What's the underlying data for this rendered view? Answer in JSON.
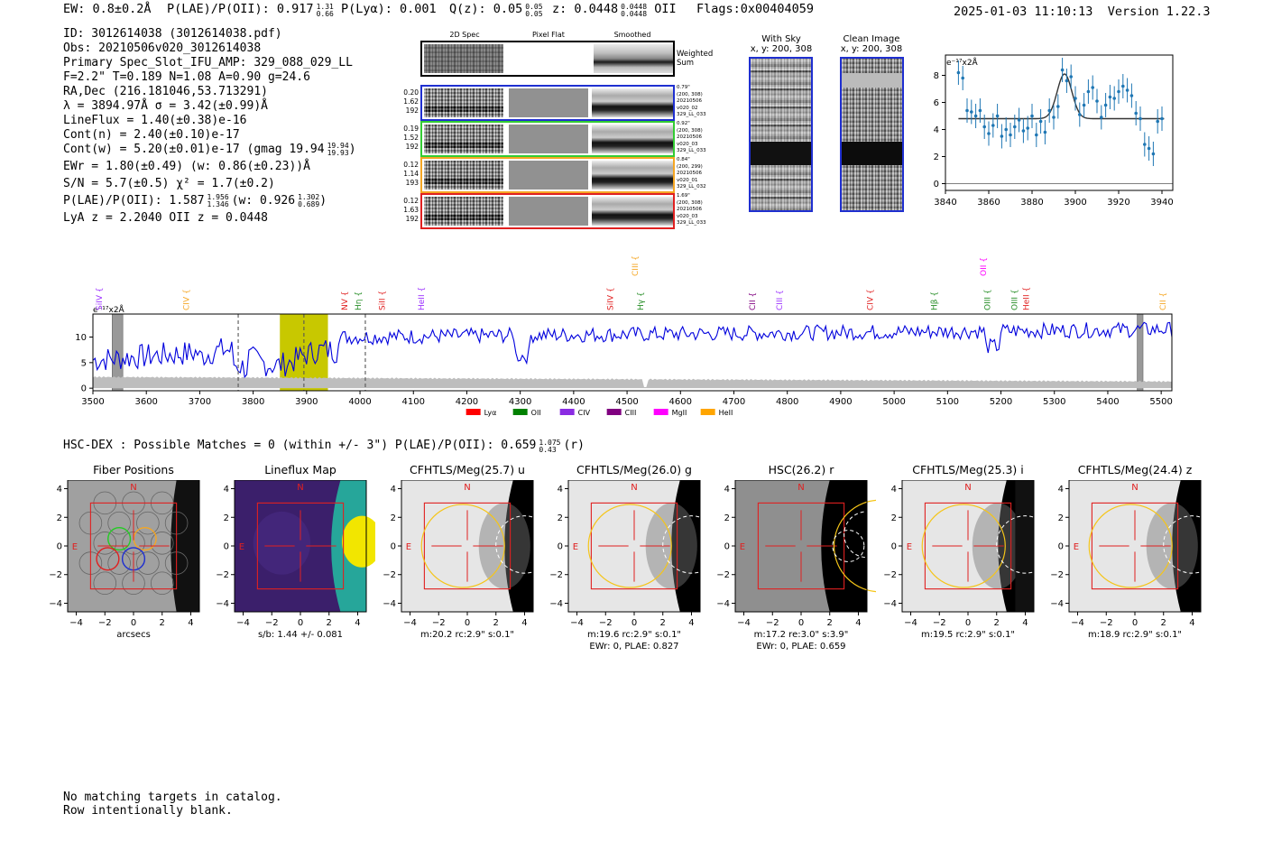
{
  "header": {
    "ew": "EW: 0.8±0.2Å",
    "plae": "P(LAE)/P(OII): 0.917",
    "plae_hi": "1.31",
    "plae_lo": "0.66",
    "plya": "P(Lyα): 0.001",
    "qz": "Q(z): 0.05",
    "qz_hi": "0.05",
    "qz_lo": "0.05",
    "z": "z: 0.0448",
    "z_hi": "0.0448",
    "z_lo": "0.0448",
    "z_line": "OII",
    "flags": "Flags:0x00404059",
    "datetime": "2025-01-03 11:10:13",
    "version": "Version 1.22.3"
  },
  "info": {
    "id": "ID: 3012614038 (3012614038.pdf)",
    "obs": "Obs: 20210506v020_3012614038",
    "primary": "Primary Spec_Slot_IFU_AMP: 329_088_029_LL",
    "fparams": "F=2.2\"  T=0.189  N=1.08  A=0.90  g=24.6",
    "radec": "RA,Dec (216.181046,53.713291)",
    "lambda": "λ = 3894.97Å   σ = 3.42(±0.99)Å",
    "lineflux": "LineFlux = 1.40(±0.38)e-16",
    "contn": "Cont(n) = 2.40(±0.10)e-17",
    "contw": "Cont(w) = 5.20(±0.01)e-17 (gmag 19.94",
    "contw_hi": "19.94",
    "contw_lo": "19.93",
    "ewr": "EWr = 1.80(±0.49) (w: 0.86(±0.23))Å",
    "sn": "S/N = 5.7(±0.5)  χ² = 1.7(±0.2)",
    "plae2": "P(LAE)/P(OII): 1.587",
    "plae2_hi": "1.956",
    "plae2_lo": "1.346",
    "plae2_w": "(w: 0.926",
    "plae2_w_hi": "1.302",
    "plae2_w_lo": "0.689",
    "lyaz": "LyA z = 2.2040   OII z = 0.0448"
  },
  "cutouts": {
    "col1": "2D Spec",
    "col2": "Pixel Flat",
    "col3": "Smoothed",
    "weighted": "Weighted",
    "sum": "Sum",
    "rows": [
      {
        "color": "#1f2fd0",
        "left": [
          "0.20",
          "1.62",
          "192"
        ],
        "right": [
          "0.79\"",
          "(200, 308)",
          "20210506",
          "v020_02",
          "329_LL_033"
        ]
      },
      {
        "color": "#33cc33",
        "left": [
          "0.19",
          "1.52",
          "192"
        ],
        "right": [
          "0.92\"",
          "(200, 308)",
          "20210506",
          "v020_03",
          "329_LL_033"
        ]
      },
      {
        "color": "#f5a623",
        "left": [
          "0.12",
          "1.14",
          "193"
        ],
        "right": [
          "0.84\"",
          "(200, 299)",
          "20210506",
          "v020_01",
          "329_LL_032"
        ]
      },
      {
        "color": "#e02020",
        "left": [
          "0.12",
          "1.63",
          "192"
        ],
        "right": [
          "1.69\"",
          "(200, 308)",
          "20210506",
          "v020_03",
          "329_LL_033"
        ]
      }
    ],
    "with_sky": "With Sky",
    "with_sky_xy": "x, y: 200, 308",
    "clean": "Clean Image",
    "clean_xy": "x, y: 200, 308"
  },
  "fit_chart": {
    "ylabel": "e⁻¹⁷x2Å",
    "chart_data": {
      "type": "scatter",
      "xlim": [
        3840,
        3945
      ],
      "ylim": [
        -0.5,
        9.5
      ],
      "xticks": [
        3840,
        3860,
        3880,
        3900,
        3920,
        3940
      ],
      "yticks": [
        0,
        2,
        4,
        6,
        8
      ],
      "x": [
        3846,
        3848,
        3850,
        3852,
        3854,
        3856,
        3858,
        3860,
        3862,
        3864,
        3866,
        3868,
        3870,
        3872,
        3874,
        3876,
        3878,
        3880,
        3882,
        3884,
        3886,
        3888,
        3890,
        3892,
        3894,
        3896,
        3898,
        3900,
        3902,
        3904,
        3906,
        3908,
        3910,
        3912,
        3914,
        3916,
        3918,
        3920,
        3922,
        3924,
        3926,
        3928,
        3930,
        3932,
        3934,
        3936,
        3938,
        3940
      ],
      "y": [
        8.2,
        7.8,
        5.4,
        5.3,
        5.0,
        5.4,
        4.2,
        3.7,
        4.3,
        5.0,
        3.5,
        4.0,
        3.6,
        4.2,
        4.7,
        3.9,
        4.1,
        5.0,
        3.6,
        4.6,
        3.8,
        5.4,
        4.9,
        5.7,
        8.4,
        7.6,
        7.9,
        6.3,
        5.1,
        5.8,
        6.8,
        7.1,
        6.1,
        4.9,
        5.8,
        6.4,
        6.3,
        6.8,
        7.2,
        6.9,
        6.5,
        5.2,
        4.8,
        2.9,
        2.6,
        2.2,
        4.6,
        4.8
      ],
      "fit_continuum": 4.8,
      "fit_peak": 8.1,
      "fit_center": 3895,
      "fit_sigma": 3.4
    }
  },
  "spectrum": {
    "ylabel": "e⁻¹⁷x2Å",
    "chart_data": {
      "type": "line",
      "xlim": [
        3500,
        5520
      ],
      "ylim": [
        -0.5,
        14.5
      ],
      "xticks": [
        3500,
        3600,
        3700,
        3800,
        3900,
        4000,
        4100,
        4200,
        4300,
        4400,
        4500,
        4600,
        4700,
        4800,
        4900,
        5000,
        5100,
        5200,
        5300,
        5400,
        5500
      ],
      "yticks": [
        0,
        5,
        10
      ],
      "series_seed": 7,
      "highlight": [
        3850,
        3940
      ],
      "dashed_lines": [
        3772,
        3895,
        4010
      ],
      "gray_bands": [
        [
          3536,
          3556
        ],
        [
          5455,
          5466
        ]
      ],
      "line_labels": [
        {
          "text": "SiIV",
          "x": 3517,
          "color": "#9b30ff",
          "tier": 1
        },
        {
          "text": "CIV",
          "x": 3680,
          "color": "#f5a623",
          "tier": 1
        },
        {
          "text": "NV",
          "x": 3976,
          "color": "#e02020",
          "tier": 1
        },
        {
          "text": "Hη",
          "x": 4002,
          "color": "#228b22",
          "tier": 1
        },
        {
          "text": "SiII",
          "x": 4046,
          "color": "#e02020",
          "tier": 1
        },
        {
          "text": "HeII",
          "x": 4120,
          "color": "#9b30ff",
          "tier": 1
        },
        {
          "text": "CIII",
          "x": 4520,
          "color": "#f5a623",
          "tier": 2
        },
        {
          "text": "SiIV",
          "x": 4474,
          "color": "#e02020",
          "tier": 1
        },
        {
          "text": "Hγ",
          "x": 4530,
          "color": "#228b22",
          "tier": 1
        },
        {
          "text": "CII",
          "x": 4740,
          "color": "#800080",
          "tier": 1
        },
        {
          "text": "CIII",
          "x": 4790,
          "color": "#9b30ff",
          "tier": 1
        },
        {
          "text": "CIV",
          "x": 4960,
          "color": "#e02020",
          "tier": 1
        },
        {
          "text": "Hβ",
          "x": 5080,
          "color": "#228b22",
          "tier": 1
        },
        {
          "text": "OIII",
          "x": 5180,
          "color": "#228b22",
          "tier": 1
        },
        {
          "text": "OII",
          "x": 5172,
          "color": "#ff00ff",
          "tier": 2
        },
        {
          "text": "OIII",
          "x": 5230,
          "color": "#228b22",
          "tier": 1
        },
        {
          "text": "HeII",
          "x": 5252,
          "color": "#e02020",
          "tier": 1
        },
        {
          "text": "CII",
          "x": 5508,
          "color": "#f5a623",
          "tier": 1
        }
      ],
      "legend": [
        {
          "name": "Lyα",
          "color": "#ff0000"
        },
        {
          "name": "OII",
          "color": "#008000"
        },
        {
          "name": "CIV",
          "color": "#8a2be2"
        },
        {
          "name": "CIII",
          "color": "#800080"
        },
        {
          "name": "MgII",
          "color": "#ff00ff"
        },
        {
          "name": "HeII",
          "color": "#ffa500"
        }
      ]
    }
  },
  "hsc": {
    "title": "HSC-DEX : Possible Matches = 0 (within +/- 3\")  P(LAE)/P(OII): 0.659",
    "hi": "1.075",
    "lo": "0.43",
    "band": "(r)"
  },
  "panels": [
    {
      "title": "Fiber Positions",
      "xlabel": "arcsecs",
      "sub": "",
      "kind": "fibers"
    },
    {
      "title": "Lineflux Map",
      "xlabel": "s/b: 1.44 +/- 0.081",
      "sub": "",
      "kind": "lineflux"
    },
    {
      "title": "CFHTLS/Meg(25.7) u",
      "xlabel": "m:20.2 rc:2.9\"  s:0.1\"",
      "sub": "",
      "kind": "u"
    },
    {
      "title": "CFHTLS/Meg(26.0) g",
      "xlabel": "m:19.6 rc:2.9\"  s:0.1\"",
      "sub": "EWr: 0, PLAE: 0.827",
      "kind": "g"
    },
    {
      "title": "HSC(26.2) r",
      "xlabel": "m:17.2  re:3.0\"  s:3.9\"",
      "sub": "EWr: 0, PLAE: 0.659",
      "kind": "r"
    },
    {
      "title": "CFHTLS/Meg(25.3) i",
      "xlabel": "m:19.5 rc:2.9\"  s:0.1\"",
      "sub": "",
      "kind": "i"
    },
    {
      "title": "CFHTLS/Meg(24.4) z",
      "xlabel": "m:18.9 rc:2.9\"  s:0.1\"",
      "sub": "",
      "kind": "z"
    }
  ],
  "axis_ticks": [
    "4",
    "2",
    "0",
    "−2",
    "−4"
  ],
  "axis_xticks": [
    "−4",
    "−2",
    "0",
    "2",
    "4"
  ],
  "compass_n": "N",
  "compass_e": "E",
  "footer": {
    "line1": "No matching targets in catalog.",
    "line2": "Row intentionally blank."
  }
}
